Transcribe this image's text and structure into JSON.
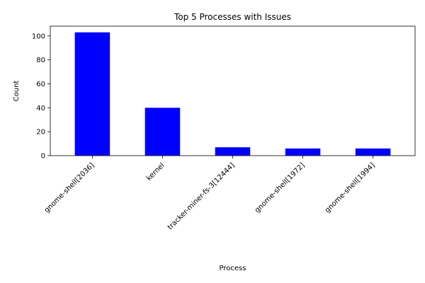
{
  "chart_data": {
    "type": "bar",
    "title": "Top 5 Processes with Issues",
    "xlabel": "Process",
    "ylabel": "Count",
    "categories": [
      "gnome-shell[2036]",
      "kernel",
      "tracker-miner-fs-3[12444]",
      "gnome-shell[1972]",
      "gnome-shell[1994]"
    ],
    "values": [
      103,
      40,
      7,
      6,
      6
    ],
    "ylim": [
      0,
      108.15
    ],
    "yticks": [
      0,
      20,
      40,
      60,
      80,
      100
    ],
    "bar_color": "#0000ff",
    "grid": false,
    "legend": "none"
  }
}
